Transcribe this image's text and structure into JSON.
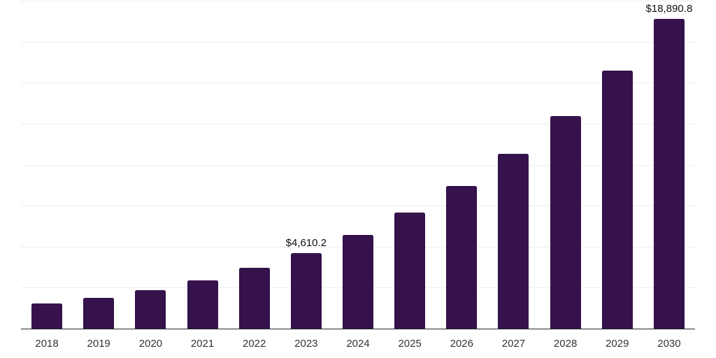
{
  "chart_data": {
    "type": "bar",
    "title": "",
    "xlabel": "",
    "ylabel": "",
    "categories": [
      "2018",
      "2019",
      "2020",
      "2021",
      "2022",
      "2023",
      "2024",
      "2025",
      "2026",
      "2027",
      "2028",
      "2029",
      "2030"
    ],
    "values": [
      1535,
      1860,
      2345,
      2940,
      3705,
      4610.2,
      5715,
      7080,
      8700,
      10660,
      12965,
      15735,
      18890.8
    ],
    "value_labels": [
      null,
      null,
      null,
      null,
      null,
      "$4,610.2",
      null,
      null,
      null,
      null,
      null,
      null,
      "$18,890.8"
    ],
    "ylim": [
      0,
      20000
    ],
    "gridline_interval": 2500,
    "grid": true,
    "legend": false,
    "colors": {
      "bar": "#35124B",
      "gridline": "#eeeeee",
      "axis_line": "#262626",
      "tick_label": "#333333",
      "data_label": "#111111",
      "background": "#ffffff"
    }
  }
}
